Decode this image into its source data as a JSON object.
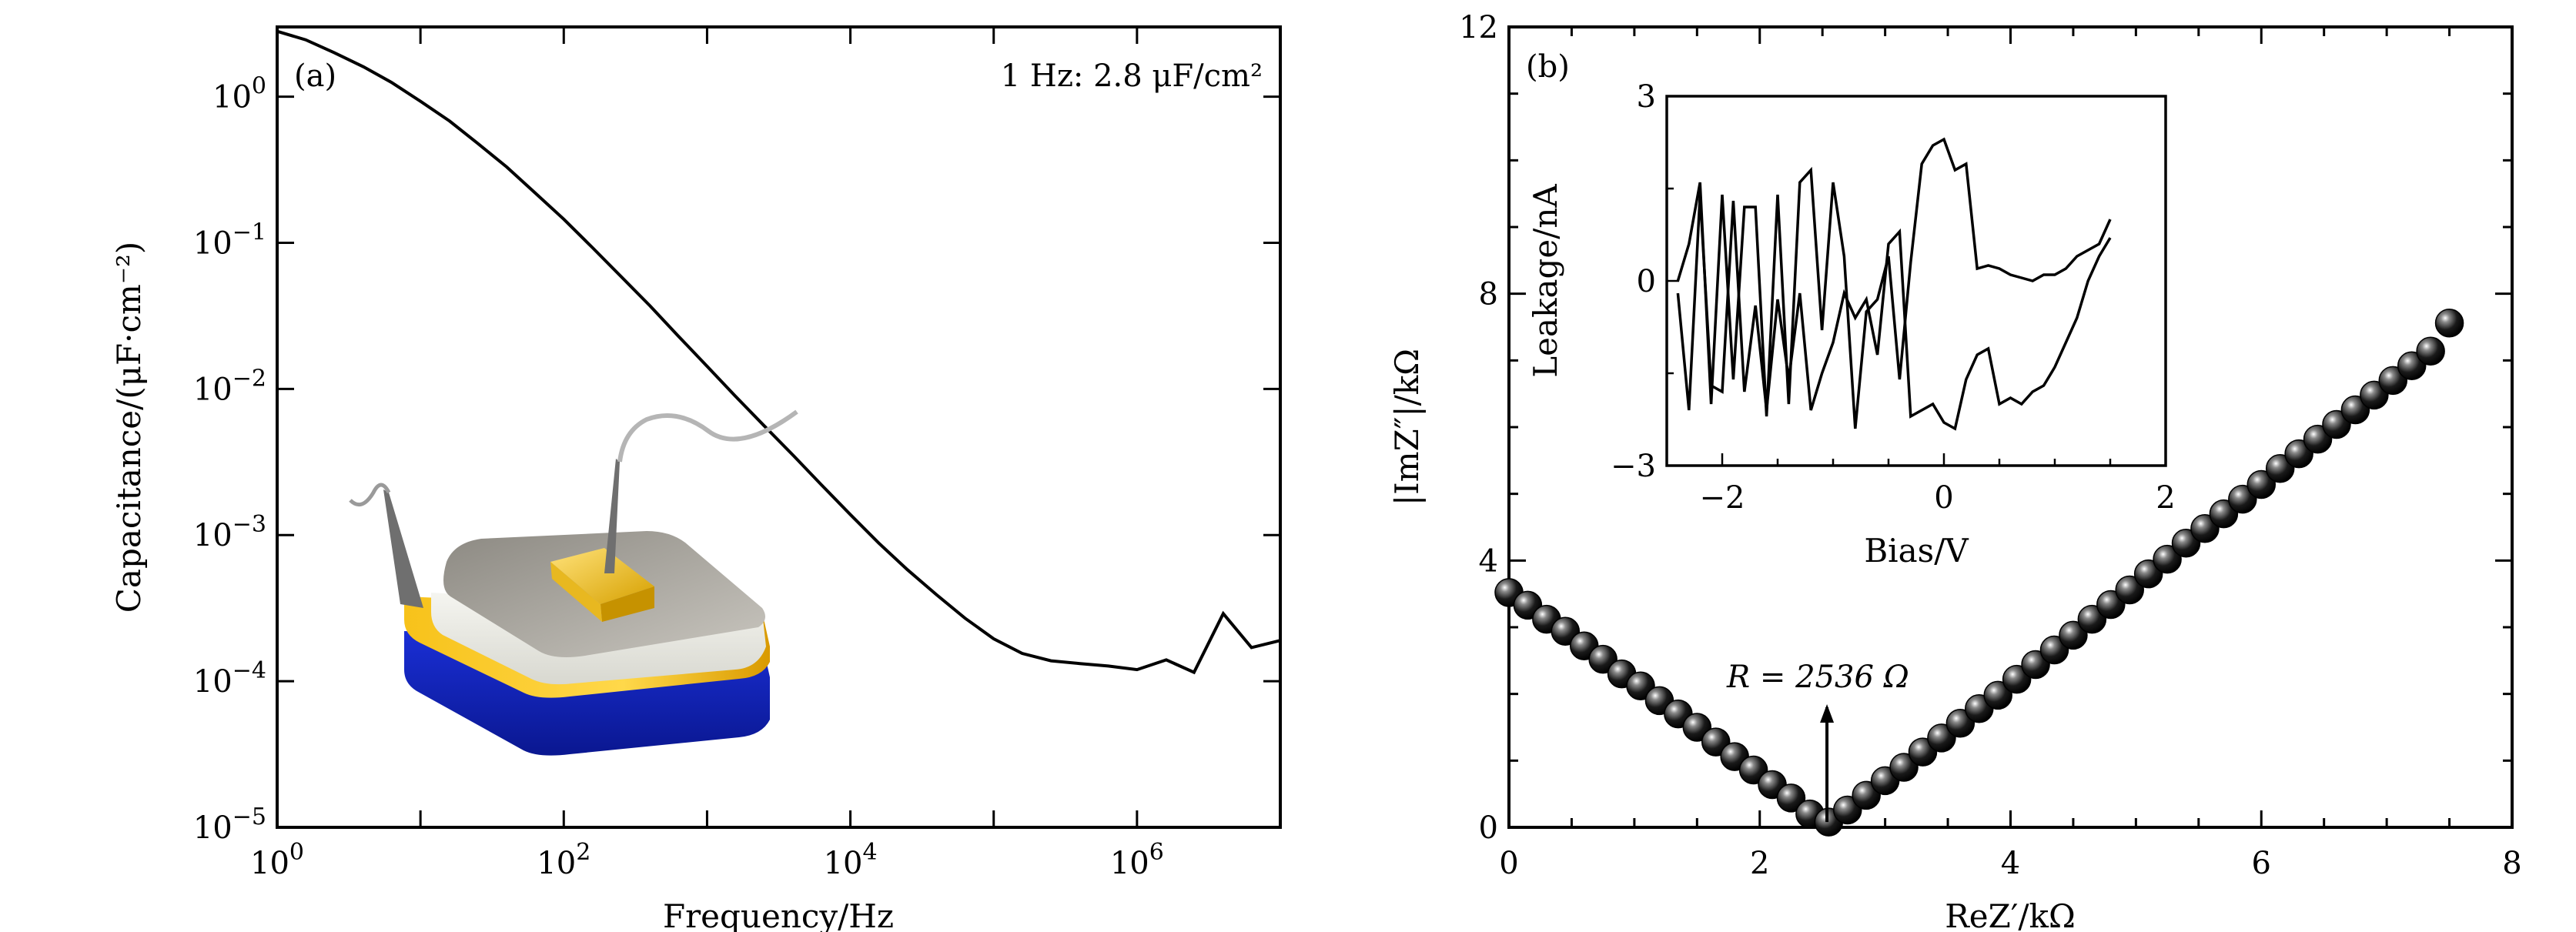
{
  "figure": {
    "panel_a_label": "(a)",
    "panel_b_label": "(b)"
  },
  "chart_data": [
    {
      "type": "line",
      "panel": "(a)",
      "xlabel": "Frequency/Hz",
      "ylabel": "Capacitance/(μF·cm⁻²)",
      "xscale": "log",
      "yscale": "log",
      "xlim": [
        1,
        10000000
      ],
      "ylim": [
        1e-05,
        3
      ],
      "x_tick_values": [
        1,
        100,
        10000,
        1000000
      ],
      "x_tick_labels": [
        "10^0",
        "10^2",
        "10^4",
        "10^6"
      ],
      "y_tick_values": [
        1e-05,
        0.0001,
        0.001,
        0.01,
        0.1,
        1
      ],
      "y_tick_labels": [
        "10^-5",
        "10^-4",
        "10^-3",
        "10^-2",
        "10^-1",
        "10^0"
      ],
      "annotation": "1 Hz: 2.8 μF/cm²",
      "inset_image": "device-schematic",
      "series": [
        {
          "x": [
            1,
            1.58,
            2.5,
            4,
            6.3,
            10,
            16,
            25,
            40,
            63,
            100,
            158,
            250,
            400,
            630,
            1000,
            1580,
            2500,
            4000,
            6300,
            10000,
            15800,
            25000,
            40000,
            63000,
            100000,
            158000,
            251000,
            400000,
            630000,
            1000000,
            1600000,
            2500000,
            4000000,
            6300000,
            10000000
          ],
          "y": [
            2.8,
            2.45,
            2.0,
            1.6,
            1.25,
            0.93,
            0.68,
            0.48,
            0.33,
            0.22,
            0.145,
            0.093,
            0.059,
            0.037,
            0.023,
            0.0143,
            0.0089,
            0.0056,
            0.0035,
            0.0022,
            0.00138,
            0.00088,
            0.00058,
            0.00039,
            0.00027,
            0.000195,
            0.000155,
            0.000138,
            0.000132,
            0.000127,
            0.00012,
            0.00014,
            0.000115,
            0.00029,
            0.00017,
            0.00019
          ]
        }
      ]
    },
    {
      "type": "scatter",
      "panel": "(b)",
      "xlabel": "ReZ′/kΩ",
      "ylabel": "|ImZ″|/kΩ",
      "xlim": [
        0,
        8
      ],
      "ylim": [
        0,
        12
      ],
      "x_ticks": [
        0,
        2,
        4,
        6,
        8
      ],
      "y_ticks": [
        0,
        4,
        8,
        12
      ],
      "annotation": "R = 2536 Ω",
      "annotation_arrow_x": 2.536,
      "series": [
        {
          "x": [
            0.0,
            0.15,
            0.3,
            0.45,
            0.6,
            0.75,
            0.9,
            1.05,
            1.2,
            1.35,
            1.5,
            1.65,
            1.8,
            1.95,
            2.1,
            2.25,
            2.4,
            2.55,
            2.7,
            2.85,
            3.0,
            3.15,
            3.3,
            3.45,
            3.6,
            3.75,
            3.9,
            4.05,
            4.2,
            4.35,
            4.5,
            4.65,
            4.8,
            4.95,
            5.1,
            5.25,
            5.4,
            5.55,
            5.7,
            5.85,
            6.0,
            6.15,
            6.3,
            6.45,
            6.6,
            6.75,
            6.9,
            7.05,
            7.2,
            7.35,
            7.5
          ],
          "y": [
            3.52,
            3.33,
            3.12,
            2.94,
            2.72,
            2.52,
            2.3,
            2.12,
            1.9,
            1.7,
            1.5,
            1.28,
            1.06,
            0.86,
            0.64,
            0.44,
            0.2,
            0.08,
            0.26,
            0.48,
            0.7,
            0.9,
            1.13,
            1.34,
            1.56,
            1.78,
            1.98,
            2.22,
            2.44,
            2.66,
            2.88,
            3.12,
            3.34,
            3.56,
            3.8,
            4.02,
            4.26,
            4.48,
            4.7,
            4.92,
            5.14,
            5.38,
            5.6,
            5.82,
            6.04,
            6.26,
            6.48,
            6.7,
            6.92,
            7.14,
            7.56
          ]
        }
      ],
      "inset": {
        "type": "line",
        "xlabel": "Bias/V",
        "ylabel": "Leakage/nA",
        "xlim": [
          -2.5,
          2
        ],
        "ylim": [
          -3,
          3
        ],
        "x_ticks": [
          -2,
          0,
          2
        ],
        "y_ticks": [
          -3,
          0,
          3
        ],
        "series": [
          {
            "x": [
              -2.4,
              -2.3,
              -2.2,
              -2.1,
              -2.0,
              -1.9,
              -1.8,
              -1.7,
              -1.6,
              -1.5,
              -1.4,
              -1.3,
              -1.2,
              -1.1,
              -1.0,
              -0.9,
              -0.8,
              -0.7,
              -0.6,
              -0.5,
              -0.4,
              -0.3,
              -0.2,
              -0.1,
              0.0,
              0.1,
              0.2,
              0.3,
              0.4,
              0.5,
              0.6,
              0.7,
              0.8,
              0.9,
              1.0,
              1.1,
              1.2,
              1.3,
              1.4,
              1.5
            ],
            "y": [
              0.0,
              0.6,
              1.6,
              -2.0,
              1.4,
              -1.6,
              1.2,
              1.2,
              -2.2,
              1.4,
              -2.0,
              1.6,
              1.8,
              -0.8,
              1.6,
              0.4,
              -2.4,
              -0.5,
              -0.3,
              0.4,
              -1.6,
              0.3,
              1.9,
              2.2,
              2.3,
              1.8,
              1.9,
              0.2,
              0.25,
              0.2,
              0.1,
              0.05,
              0.0,
              0.1,
              0.1,
              0.2,
              0.4,
              0.5,
              0.6,
              1.0
            ]
          },
          {
            "x": [
              -2.4,
              -2.3,
              -2.2,
              -2.1,
              -2.0,
              -1.9,
              -1.8,
              -1.7,
              -1.6,
              -1.5,
              -1.4,
              -1.3,
              -1.2,
              -1.1,
              -1.0,
              -0.9,
              -0.8,
              -0.7,
              -0.6,
              -0.5,
              -0.4,
              -0.3,
              -0.2,
              -0.1,
              0.0,
              0.1,
              0.2,
              0.3,
              0.4,
              0.5,
              0.6,
              0.7,
              0.8,
              0.9,
              1.0,
              1.1,
              1.2,
              1.3,
              1.4,
              1.5
            ],
            "y": [
              -0.2,
              -2.1,
              1.4,
              -1.7,
              -1.8,
              1.3,
              -1.8,
              -0.4,
              -2.1,
              -0.3,
              -1.6,
              -0.2,
              -2.1,
              -1.5,
              -1.0,
              -0.2,
              -0.6,
              -0.3,
              -1.2,
              0.6,
              0.8,
              -2.2,
              -2.1,
              -2.0,
              -2.3,
              -2.4,
              -1.6,
              -1.2,
              -1.1,
              -2.0,
              -1.9,
              -2.0,
              -1.8,
              -1.7,
              -1.4,
              -1.0,
              -0.6,
              0.0,
              0.4,
              0.7
            ]
          }
        ]
      }
    }
  ]
}
